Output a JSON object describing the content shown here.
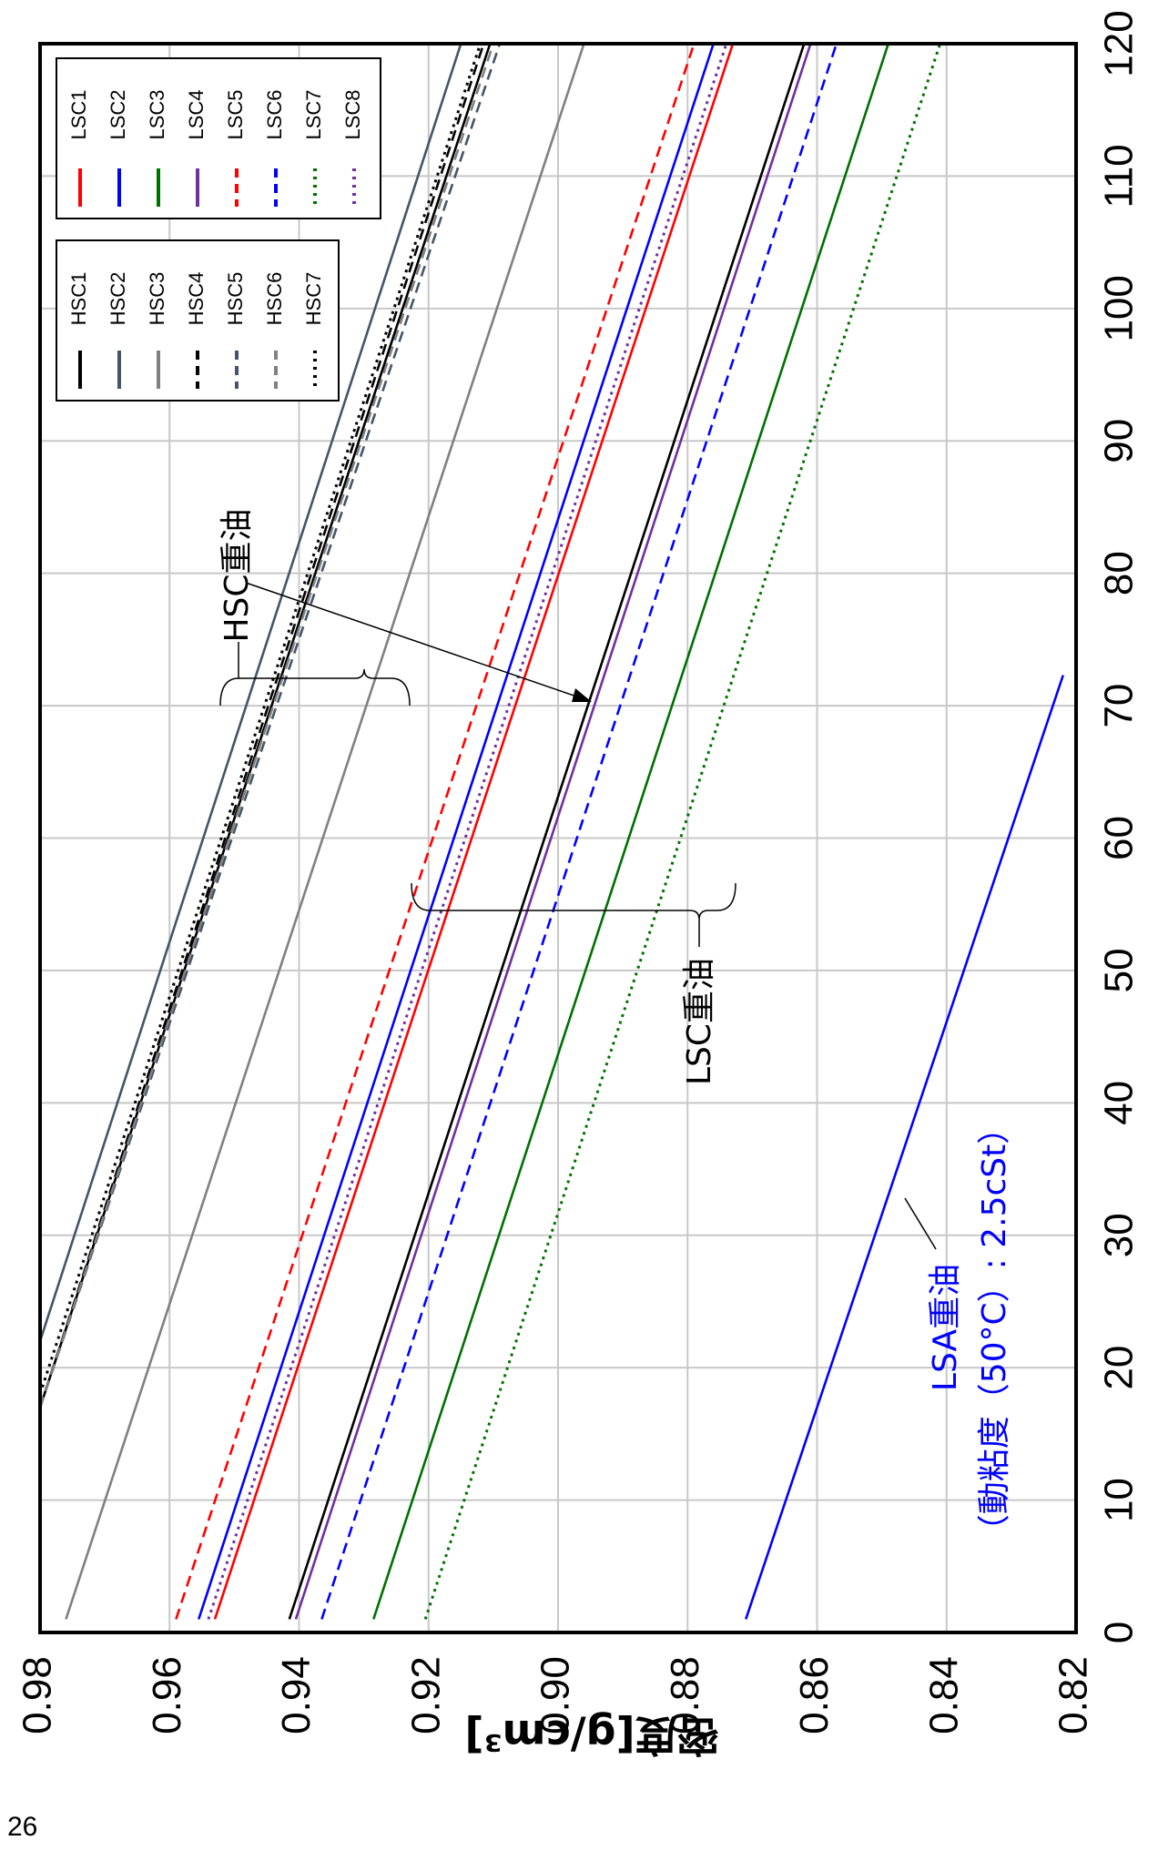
{
  "page_number": "26",
  "colors": {
    "HSC1": "#000000",
    "HSC2": "#44546a",
    "HSC3": "#808080",
    "HSC4": "#000000",
    "HSC5": "#44546a",
    "HSC6": "#808080",
    "HSC7": "#000000",
    "LSC1": "#ff0000",
    "LSC2": "#0000ff",
    "LSC3": "#007000",
    "LSC4": "#7030a0",
    "LSC5": "#ff0000",
    "LSC6": "#0000ff",
    "LSC7": "#007000",
    "LSC8": "#7030a0",
    "LSA": "#0000ff"
  },
  "chart_data": {
    "type": "line",
    "title": "",
    "xlabel": "",
    "ylabel": "密度[g/cm³]",
    "xlim": [
      0,
      120
    ],
    "ylim": [
      0.82,
      0.98
    ],
    "x_ticks": [
      0,
      10,
      20,
      30,
      40,
      50,
      60,
      70,
      80,
      90,
      100,
      110,
      120
    ],
    "y_ticks": [
      0.98,
      0.96,
      0.94,
      0.92,
      0.9,
      0.88,
      0.86,
      0.84,
      0.82
    ],
    "grid": true,
    "series": [
      {
        "name": "HSC1",
        "group": "HSC",
        "style": "solid",
        "x": [
          17,
          120
        ],
        "y": [
          0.98,
          0.9105
        ]
      },
      {
        "name": "HSC2",
        "group": "HSC",
        "style": "solid",
        "x": [
          22,
          120
        ],
        "y": [
          0.98,
          0.915
        ]
      },
      {
        "name": "HSC3",
        "group": "HSC",
        "style": "solid",
        "x": [
          1,
          120
        ],
        "y": [
          0.976,
          0.896
        ]
      },
      {
        "name": "HSC4",
        "group": "HSC",
        "style": "dashed",
        "x": [
          17,
          120
        ],
        "y": [
          0.98,
          0.9115
        ]
      },
      {
        "name": "HSC5",
        "group": "HSC",
        "style": "dashed",
        "x": [
          17,
          120
        ],
        "y": [
          0.98,
          0.909
        ]
      },
      {
        "name": "HSC6",
        "group": "HSC",
        "style": "dashed",
        "x": [
          17,
          120
        ],
        "y": [
          0.98,
          0.91
        ]
      },
      {
        "name": "HSC7",
        "group": "HSC",
        "style": "dotted",
        "x": [
          18,
          120
        ],
        "y": [
          0.98,
          0.912
        ]
      },
      {
        "name": "LSC1",
        "group": "LSC",
        "style": "solid",
        "x": [
          1,
          120
        ],
        "y": [
          0.953,
          0.873
        ]
      },
      {
        "name": "LSC2",
        "group": "LSC",
        "style": "solid",
        "x": [
          1,
          120
        ],
        "y": [
          0.9555,
          0.876
        ]
      },
      {
        "name": "LSC3",
        "group": "LSC",
        "style": "solid",
        "x": [
          1,
          120
        ],
        "y": [
          0.9285,
          0.849
        ]
      },
      {
        "name": "LSC4",
        "group": "LSC",
        "style": "solid",
        "x": [
          1,
          120
        ],
        "y": [
          0.9405,
          0.861
        ]
      },
      {
        "name": "LSC5",
        "group": "LSC",
        "style": "dashed",
        "x": [
          1,
          120
        ],
        "y": [
          0.959,
          0.879
        ]
      },
      {
        "name": "LSC6",
        "group": "LSC",
        "style": "dashed",
        "x": [
          1,
          120
        ],
        "y": [
          0.9365,
          0.857
        ]
      },
      {
        "name": "LSC7",
        "group": "LSC",
        "style": "dotted",
        "x": [
          1,
          120
        ],
        "y": [
          0.9205,
          0.841
        ]
      },
      {
        "name": "LSC8",
        "group": "LSC",
        "style": "dotted",
        "x": [
          1,
          120
        ],
        "y": [
          0.954,
          0.874
        ]
      },
      {
        "name": "LSA",
        "group": "LSA",
        "style": "solid",
        "x": [
          1,
          72.3
        ],
        "y": [
          0.871,
          0.822
        ]
      },
      {
        "name": "HSC1-extra",
        "group": "HSC",
        "style": "solid",
        "x": [
          1,
          120
        ],
        "y": [
          0.9415,
          0.862
        ]
      }
    ],
    "legend_hsc": [
      "HSC1",
      "HSC2",
      "HSC3",
      "HSC4",
      "HSC5",
      "HSC6",
      "HSC7"
    ],
    "legend_lsc": [
      "LSC1",
      "LSC2",
      "LSC3",
      "LSC4",
      "LSC5",
      "LSC6",
      "LSC7",
      "LSC8"
    ],
    "annotations": {
      "hsc_group_label": "HSC重油",
      "lsc_group_label": "LSC重油",
      "lsa_label_line1": "LSA重油",
      "lsa_label_line2": "（動粘度（50°C）: 2.5cSt）"
    }
  }
}
